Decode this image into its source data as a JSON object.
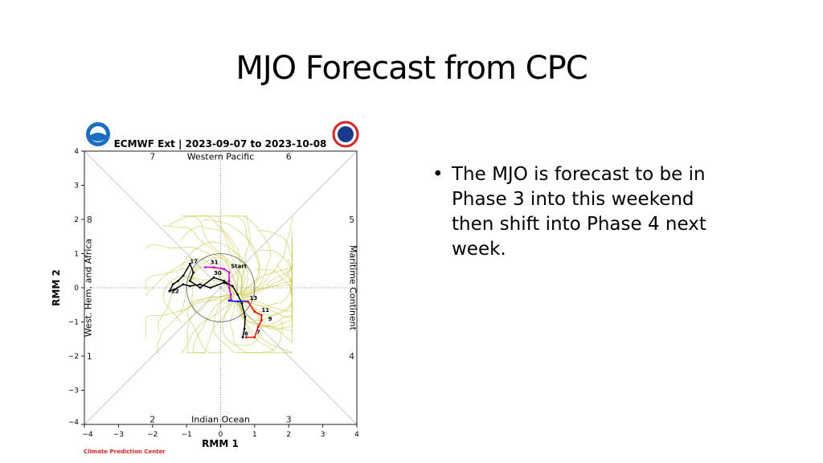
{
  "slide": {
    "title": "MJO Forecast from CPC",
    "bullet": "The MJO is forecast to be in Phase 3 into this weekend then shift into Phase 4 next week."
  },
  "chart_data": {
    "type": "line",
    "title": "ECMWF Ext | 2023-09-07 to 2023-10-08",
    "xlabel": "RMM 1",
    "ylabel": "RMM 2",
    "xlim": [
      -4,
      4
    ],
    "ylim": [
      -4,
      4
    ],
    "xticks": [
      "−4",
      "−3",
      "−2",
      "−1",
      "0",
      "1",
      "2",
      "3",
      "4"
    ],
    "yticks": [
      "−4",
      "−3",
      "−2",
      "−1",
      "0",
      "1",
      "2",
      "3",
      "4"
    ],
    "phase_labels": [
      "1",
      "2",
      "3",
      "4",
      "5",
      "6",
      "7",
      "8"
    ],
    "region_labels": {
      "top": "Western Pacific",
      "bottom": "Indian Ocean",
      "left": "West. Hem. and Africa",
      "right": "Maritime Continent"
    },
    "footer": "Climate Prediction Center",
    "colors": {
      "observed": "#000000",
      "fc1": "#cc00cc",
      "fc2": "#0000ff",
      "fc3": "#ff0000",
      "ensemble": "#c8c83a"
    },
    "series": [
      {
        "name": "observed",
        "points": [
          [
            0.65,
            -1.45
          ],
          [
            0.7,
            -1.2
          ],
          [
            0.72,
            -0.85
          ],
          [
            0.62,
            -0.45
          ],
          [
            0.5,
            -0.2
          ],
          [
            0.35,
            0.05
          ],
          [
            0.1,
            0.15
          ],
          [
            -0.3,
            0.0
          ],
          [
            -0.6,
            0.1
          ],
          [
            -0.9,
            0.05
          ],
          [
            -1.1,
            0.1
          ],
          [
            -1.35,
            -0.05
          ],
          [
            -1.5,
            -0.1
          ],
          [
            -1.4,
            0.1
          ],
          [
            -1.25,
            0.2
          ],
          [
            -1.1,
            0.35
          ],
          [
            -0.9,
            0.7
          ],
          [
            -0.8,
            0.45
          ],
          [
            -0.9,
            0.2
          ],
          [
            -0.6,
            0.0
          ],
          [
            -0.2,
            0.3
          ],
          [
            0.1,
            0.2
          ],
          [
            0.25,
            0.1
          ]
        ]
      },
      {
        "name": "forecast-a",
        "points": [
          [
            -0.45,
            0.6
          ],
          [
            -0.2,
            0.6
          ],
          [
            0.1,
            0.55
          ],
          [
            0.25,
            0.45
          ],
          [
            0.25,
            0.2
          ],
          [
            0.25,
            0.0
          ],
          [
            0.3,
            -0.2
          ],
          [
            0.3,
            -0.35
          ]
        ]
      },
      {
        "name": "forecast-b",
        "points": [
          [
            0.25,
            -0.38
          ],
          [
            0.5,
            -0.4
          ],
          [
            0.8,
            -0.4
          ]
        ]
      },
      {
        "name": "forecast-c",
        "points": [
          [
            0.8,
            -0.4
          ],
          [
            1.0,
            -0.7
          ],
          [
            1.2,
            -0.8
          ],
          [
            1.2,
            -0.95
          ],
          [
            1.1,
            -1.15
          ],
          [
            1.0,
            -1.45
          ],
          [
            0.75,
            -1.45
          ]
        ]
      }
    ],
    "point_labels": [
      {
        "text": "17",
        "x": -0.9,
        "y": 0.72
      },
      {
        "text": "31",
        "x": -0.3,
        "y": 0.7
      },
      {
        "text": "Start",
        "x": 0.3,
        "y": 0.58
      },
      {
        "text": "30",
        "x": -0.2,
        "y": 0.38
      },
      {
        "text": "22",
        "x": -1.45,
        "y": -0.15
      },
      {
        "text": "13",
        "x": 0.85,
        "y": -0.35
      },
      {
        "text": "11",
        "x": 1.2,
        "y": -0.7
      },
      {
        "text": "9",
        "x": 1.3,
        "y": -0.82
      },
      {
        "text": "7",
        "x": 1.05,
        "y": -1.35
      },
      {
        "text": "6",
        "x": 0.7,
        "y": -1.4
      }
    ]
  }
}
